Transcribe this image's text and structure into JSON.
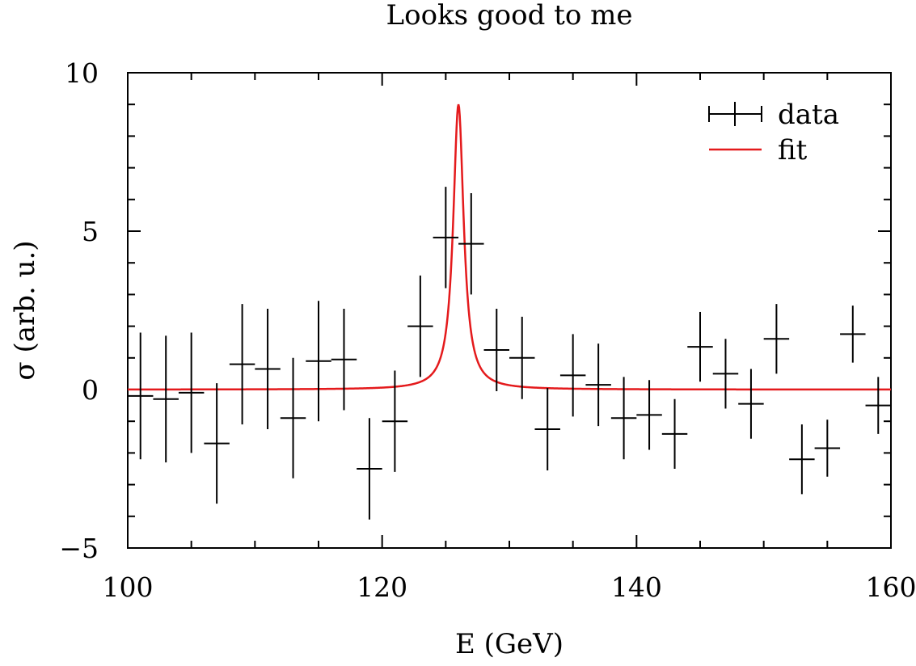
{
  "chart_data": {
    "type": "scatter",
    "title": "Looks good to me",
    "xlabel": "E (GeV)",
    "ylabel": "σ (arb. u.)",
    "xlim": [
      100,
      160
    ],
    "ylim": [
      -5,
      10
    ],
    "x_ticks": [
      "100",
      "120",
      "140",
      "160"
    ],
    "y_ticks": [
      "−5",
      "0",
      "5",
      "10"
    ],
    "legend": {
      "position": "top-right",
      "entries": [
        "data",
        "fit"
      ]
    },
    "colors": {
      "data": "#000000",
      "fit": "#e41a1c"
    },
    "series": [
      {
        "name": "data",
        "style": "errorbar",
        "x_halfwidth": 1,
        "points": [
          {
            "x": 101,
            "y": -0.2,
            "err": 2.0
          },
          {
            "x": 103,
            "y": -0.3,
            "err": 2.0
          },
          {
            "x": 105,
            "y": -0.1,
            "err": 1.9
          },
          {
            "x": 107,
            "y": -1.7,
            "err": 1.9
          },
          {
            "x": 109,
            "y": 0.8,
            "err": 1.9
          },
          {
            "x": 111,
            "y": 0.65,
            "err": 1.9
          },
          {
            "x": 113,
            "y": -0.9,
            "err": 1.9
          },
          {
            "x": 115,
            "y": 0.9,
            "err": 1.9
          },
          {
            "x": 117,
            "y": 0.95,
            "err": 1.6
          },
          {
            "x": 119,
            "y": -2.5,
            "err": 1.6
          },
          {
            "x": 121,
            "y": -1.0,
            "err": 1.6
          },
          {
            "x": 123,
            "y": 2.0,
            "err": 1.6
          },
          {
            "x": 125,
            "y": 4.8,
            "err": 1.6
          },
          {
            "x": 127,
            "y": 4.6,
            "err": 1.6
          },
          {
            "x": 129,
            "y": 1.25,
            "err": 1.3
          },
          {
            "x": 131,
            "y": 1.0,
            "err": 1.3
          },
          {
            "x": 133,
            "y": -1.25,
            "err": 1.3
          },
          {
            "x": 135,
            "y": 0.45,
            "err": 1.3
          },
          {
            "x": 137,
            "y": 0.15,
            "err": 1.3
          },
          {
            "x": 139,
            "y": -0.9,
            "err": 1.3
          },
          {
            "x": 141,
            "y": -0.8,
            "err": 1.1
          },
          {
            "x": 143,
            "y": -1.4,
            "err": 1.1
          },
          {
            "x": 145,
            "y": 1.35,
            "err": 1.1
          },
          {
            "x": 147,
            "y": 0.5,
            "err": 1.1
          },
          {
            "x": 149,
            "y": -0.45,
            "err": 1.1
          },
          {
            "x": 151,
            "y": 1.6,
            "err": 1.1
          },
          {
            "x": 153,
            "y": -2.2,
            "err": 1.1
          },
          {
            "x": 155,
            "y": -1.85,
            "err": 0.9
          },
          {
            "x": 157,
            "y": 1.75,
            "err": 0.9
          },
          {
            "x": 159,
            "y": -0.5,
            "err": 0.9
          }
        ]
      },
      {
        "name": "fit",
        "style": "line",
        "model": "lorentzian",
        "peak_x": 126,
        "amplitude": 9,
        "half_width": 0.5
      }
    ]
  }
}
